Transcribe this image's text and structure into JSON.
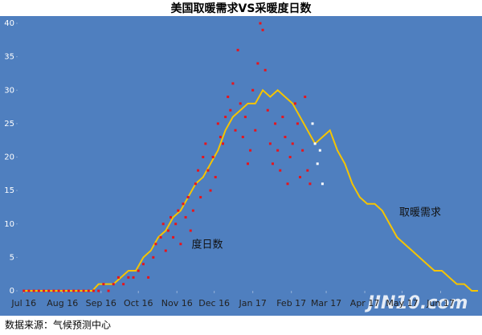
{
  "chart_data": {
    "type": "line",
    "title": "美国取暖需求VS采暖度日数",
    "source": "数据来源：气候预测中心",
    "watermark": "JIN10.com",
    "xlim": [
      -5,
      365
    ],
    "xticks": [
      {
        "value": 0,
        "label": "Jul 16"
      },
      {
        "value": 31,
        "label": "Aug 16"
      },
      {
        "value": 62,
        "label": "Sep 16"
      },
      {
        "value": 92,
        "label": "Oct 16"
      },
      {
        "value": 123,
        "label": "Nov 16"
      },
      {
        "value": 153,
        "label": "Dec 16"
      },
      {
        "value": 184,
        "label": "Jan 17"
      },
      {
        "value": 215,
        "label": "Feb 17"
      },
      {
        "value": 243,
        "label": "Mar 17"
      },
      {
        "value": 274,
        "label": "Apr 17"
      },
      {
        "value": 304,
        "label": "May 17"
      },
      {
        "value": 335,
        "label": "Jun 17"
      }
    ],
    "ylim": [
      0,
      40
    ],
    "yticks": [
      0,
      5,
      10,
      15,
      20,
      25,
      30,
      35,
      40
    ],
    "series": [
      {
        "name": "取暖需求",
        "type": "line",
        "color": "#f5c400",
        "x": [
          0,
          55,
          60,
          72,
          78,
          84,
          90,
          96,
          102,
          108,
          114,
          120,
          126,
          132,
          138,
          144,
          150,
          156,
          162,
          168,
          174,
          180,
          186,
          192,
          198,
          204,
          210,
          216,
          222,
          228,
          234,
          240,
          246,
          252,
          258,
          264,
          270,
          276,
          282,
          288,
          294,
          300,
          306,
          312,
          318,
          324,
          330,
          336,
          342,
          348,
          354,
          360,
          365
        ],
        "values": [
          0,
          0,
          1,
          1,
          2,
          3,
          3,
          5,
          6,
          8,
          9,
          11,
          12,
          14,
          16,
          17,
          19,
          21,
          24,
          26,
          27,
          28,
          28,
          30,
          29,
          30,
          29,
          28,
          26,
          24,
          22,
          23,
          24,
          21,
          19,
          16,
          14,
          13,
          13,
          12,
          10,
          8,
          7,
          6,
          5,
          4,
          3,
          3,
          2,
          1,
          1,
          0,
          0
        ]
      },
      {
        "name": "度日数",
        "type": "scatter",
        "color": "#e8141b",
        "x": [
          0,
          4,
          8,
          12,
          16,
          20,
          24,
          28,
          32,
          36,
          40,
          44,
          48,
          52,
          56,
          60,
          64,
          68,
          72,
          76,
          80,
          84,
          88,
          92,
          96,
          100,
          104,
          106,
          110,
          112,
          114,
          116,
          118,
          120,
          122,
          124,
          126,
          128,
          130,
          132,
          134,
          136,
          138,
          140,
          142,
          144,
          146,
          148,
          150,
          152,
          154,
          156,
          158,
          160,
          162,
          164,
          166,
          168,
          170,
          172,
          174,
          176,
          178,
          180,
          182,
          184,
          186,
          188,
          190,
          192,
          194,
          196,
          198,
          200,
          202,
          204,
          206,
          208,
          210,
          212,
          214,
          216,
          218,
          220,
          222,
          224,
          226,
          228,
          230
        ],
        "values": [
          0,
          0,
          0,
          0,
          0,
          0,
          0,
          0,
          0,
          0,
          0,
          0,
          0,
          0,
          0,
          0,
          1,
          0,
          1,
          2,
          1,
          2,
          2,
          3,
          4,
          2,
          5,
          7,
          8,
          10,
          6,
          9,
          11,
          8,
          10,
          12,
          7,
          13,
          11,
          14,
          9,
          12,
          16,
          18,
          14,
          20,
          22,
          18,
          15,
          20,
          17,
          25,
          23,
          22,
          26,
          29,
          27,
          31,
          24,
          36,
          28,
          23,
          26,
          19,
          21,
          30,
          24,
          34,
          40,
          39,
          33,
          27,
          22,
          19,
          25,
          21,
          18,
          26,
          23,
          16,
          20,
          22,
          28,
          25,
          17,
          21,
          29,
          18,
          16
        ]
      },
      {
        "type": "scatter",
        "color": "#ffffff",
        "x": [
          232,
          234,
          236,
          238,
          240
        ],
        "values": [
          25,
          22,
          19,
          21,
          16
        ]
      }
    ]
  }
}
